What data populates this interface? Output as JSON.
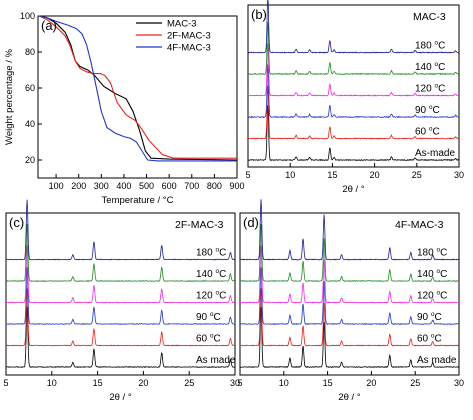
{
  "chart_data": [
    {
      "type": "line",
      "panel": "(a)",
      "title": "",
      "xlabel": "Temperature / °C",
      "ylabel": "Weight percentage / %",
      "xlim": [
        20,
        900
      ],
      "ylim": [
        10,
        100
      ],
      "xticks": [
        "100",
        "200",
        "300",
        "400",
        "500",
        "600",
        "700",
        "800",
        "900"
      ],
      "xtick_values": [
        100,
        200,
        300,
        400,
        500,
        600,
        700,
        800,
        900
      ],
      "yticks": [
        "20",
        "40",
        "60",
        "80",
        "100"
      ],
      "ytick_values": [
        20,
        40,
        60,
        80,
        100
      ],
      "legend_position": "top-right",
      "grid": false,
      "series": [
        {
          "name": "MAC-3",
          "color": "#000000",
          "points": [
            [
              25,
              100
            ],
            [
              60,
              99
            ],
            [
              100,
              96
            ],
            [
              140,
              91
            ],
            [
              165,
              84
            ],
            [
              185,
              75
            ],
            [
              205,
              72
            ],
            [
              240,
              70
            ],
            [
              270,
              67
            ],
            [
              310,
              61
            ],
            [
              360,
              57
            ],
            [
              410,
              54
            ],
            [
              440,
              47
            ],
            [
              470,
              36
            ],
            [
              495,
              25
            ],
            [
              520,
              21
            ],
            [
              600,
              20.5
            ],
            [
              900,
              20
            ]
          ]
        },
        {
          "name": "2F-MAC-3",
          "color": "#e8211a",
          "points": [
            [
              25,
              100
            ],
            [
              60,
              98
            ],
            [
              100,
              94
            ],
            [
              140,
              89
            ],
            [
              160,
              84
            ],
            [
              185,
              75
            ],
            [
              205,
              71
            ],
            [
              235,
              69
            ],
            [
              265,
              68
            ],
            [
              295,
              68
            ],
            [
              315,
              67
            ],
            [
              340,
              63
            ],
            [
              370,
              52
            ],
            [
              410,
              45
            ],
            [
              450,
              42
            ],
            [
              480,
              37
            ],
            [
              510,
              31
            ],
            [
              540,
              27
            ],
            [
              570,
              23
            ],
            [
              620,
              21
            ],
            [
              700,
              21
            ],
            [
              900,
              21
            ]
          ]
        },
        {
          "name": "4F-MAC-3",
          "color": "#1f36c9",
          "points": [
            [
              25,
              100
            ],
            [
              60,
              99
            ],
            [
              100,
              97
            ],
            [
              150,
              95
            ],
            [
              190,
              93
            ],
            [
              215,
              90
            ],
            [
              235,
              84
            ],
            [
              255,
              74
            ],
            [
              275,
              62
            ],
            [
              300,
              47
            ],
            [
              325,
              38
            ],
            [
              360,
              35
            ],
            [
              400,
              33
            ],
            [
              430,
              32
            ],
            [
              455,
              30
            ],
            [
              480,
              25
            ],
            [
              505,
              20
            ],
            [
              550,
              19.5
            ],
            [
              900,
              19.5
            ]
          ]
        }
      ]
    },
    {
      "type": "line",
      "panel": "(b)",
      "title": "MAC-3",
      "xlabel": "2θ / °",
      "ylabel": "",
      "xlim": [
        5,
        30
      ],
      "xticks": [
        "5",
        "10",
        "15",
        "20",
        "25",
        "30"
      ],
      "xtick_values": [
        5,
        10,
        15,
        20,
        25,
        30
      ],
      "peaks": [
        [
          7.35,
          1.0
        ],
        [
          10.7,
          0.06
        ],
        [
          12.3,
          0.05
        ],
        [
          14.7,
          0.22
        ],
        [
          15.2,
          0.05
        ],
        [
          22.0,
          0.06
        ],
        [
          24.8,
          0.04
        ],
        [
          29.6,
          0.03
        ]
      ],
      "series": [
        {
          "name": "As-made",
          "color": "#000000",
          "scale": 1.0,
          "noise": 0.8
        },
        {
          "name": "60 °C",
          "color": "#e8211a",
          "scale": 0.95,
          "noise": 0.8
        },
        {
          "name": "90 °C",
          "color": "#1f36c9",
          "scale": 0.95,
          "noise": 0.8
        },
        {
          "name": "120 °C",
          "color": "#ee2ce8",
          "scale": 0.95,
          "noise": 0.8
        },
        {
          "name": "140 °C",
          "color": "#1f8a24",
          "scale": 0.95,
          "noise": 0.8
        },
        {
          "name": "180 °C",
          "color": "#1c1f8a",
          "scale": 1.0,
          "noise": 0.8
        }
      ]
    },
    {
      "type": "line",
      "panel": "(c)",
      "title": "2F-MAC-3",
      "xlabel": "2θ / °",
      "ylabel": "",
      "xlim": [
        5,
        30
      ],
      "xticks": [
        "5",
        "10",
        "15",
        "20",
        "25",
        "30"
      ],
      "xtick_values": [
        5,
        10,
        15,
        20,
        25,
        30
      ],
      "peaks": [
        [
          7.3,
          1.0
        ],
        [
          12.3,
          0.08
        ],
        [
          14.6,
          0.3
        ],
        [
          22.0,
          0.24
        ],
        [
          29.5,
          0.12
        ]
      ],
      "series": [
        {
          "name": "As made",
          "color": "#000000",
          "scale": 1.0,
          "noise": 0.6
        },
        {
          "name": "60 °C",
          "color": "#e8211a",
          "scale": 0.95,
          "noise": 0.6
        },
        {
          "name": "90 °C",
          "color": "#1f36c9",
          "scale": 0.95,
          "noise": 0.6
        },
        {
          "name": "120 °C",
          "color": "#ee2ce8",
          "scale": 0.95,
          "noise": 0.6
        },
        {
          "name": "140 °C",
          "color": "#1f8a24",
          "scale": 0.95,
          "noise": 0.6
        },
        {
          "name": "180 °C",
          "color": "#1c1f8a",
          "scale": 1.0,
          "noise": 0.6
        }
      ]
    },
    {
      "type": "line",
      "panel": "(d)",
      "title": "4F-MAC-3",
      "xlabel": "2θ / °",
      "ylabel": "",
      "xlim": [
        5,
        30
      ],
      "xticks": [
        "5",
        "10",
        "15",
        "20",
        "25",
        "30"
      ],
      "xtick_values": [
        5,
        10,
        15,
        20,
        25,
        30
      ],
      "peaks": [
        [
          7.4,
          1.0
        ],
        [
          10.7,
          0.15
        ],
        [
          12.2,
          0.35
        ],
        [
          14.6,
          0.75
        ],
        [
          16.6,
          0.08
        ],
        [
          22.1,
          0.2
        ],
        [
          24.5,
          0.12
        ],
        [
          27.0,
          0.07
        ]
      ],
      "series": [
        {
          "name": "As made",
          "color": "#000000",
          "scale": 1.0,
          "noise": 0.7
        },
        {
          "name": "60 °C",
          "color": "#e8211a",
          "scale": 0.95,
          "noise": 0.7
        },
        {
          "name": "90 °C",
          "color": "#1f36c9",
          "scale": 0.95,
          "noise": 0.7
        },
        {
          "name": "120 °C",
          "color": "#ee2ce8",
          "scale": 0.95,
          "noise": 0.7
        },
        {
          "name": "140 °C",
          "color": "#1f8a24",
          "scale": 0.95,
          "noise": 0.7
        },
        {
          "name": "180 °C",
          "color": "#1c1f8a",
          "scale": 1.0,
          "noise": 0.7
        }
      ]
    }
  ]
}
